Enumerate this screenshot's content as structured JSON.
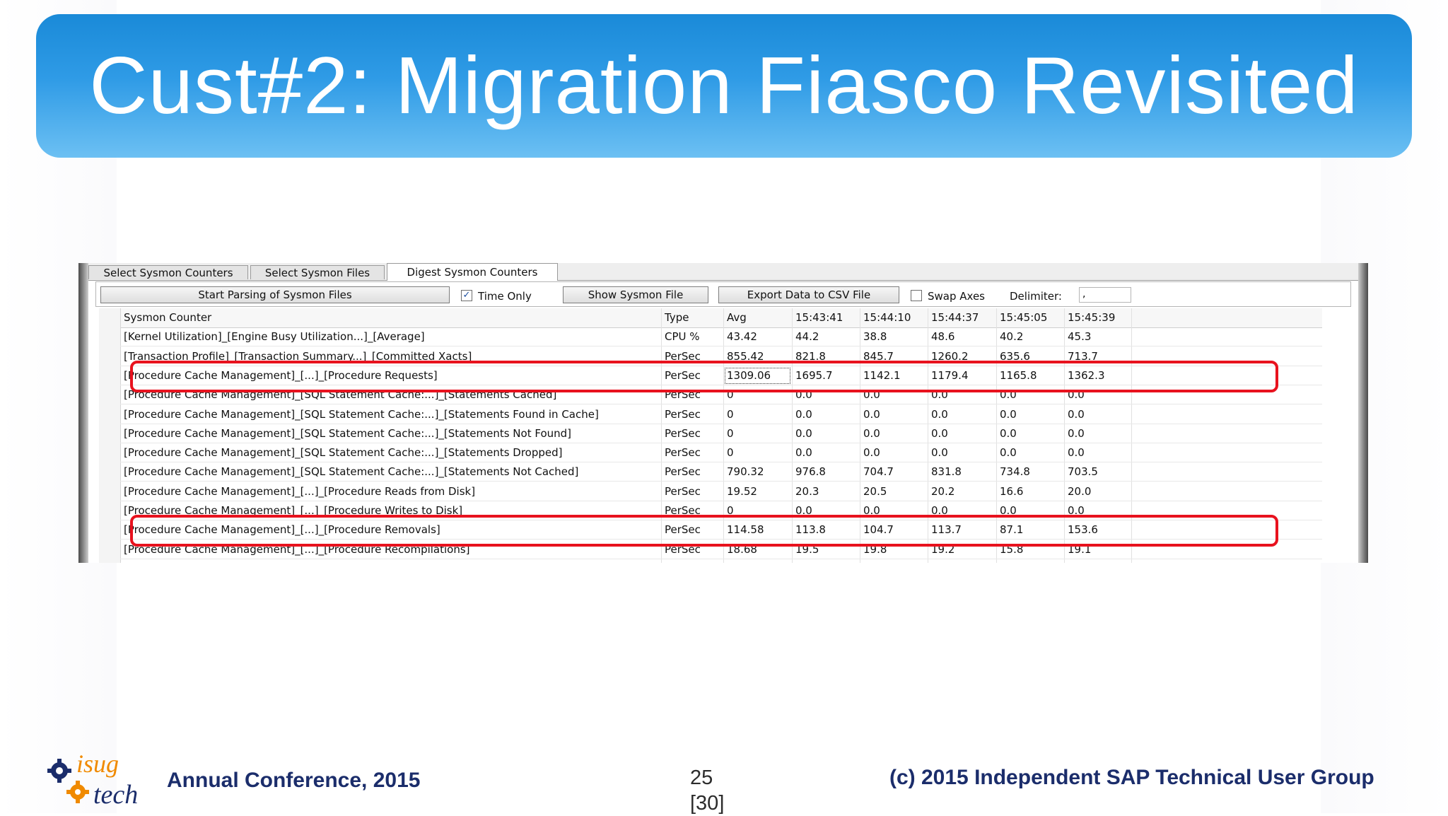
{
  "slide": {
    "title": "Cust#2: Migration Fiasco Revisited",
    "footer_left": "Annual Conference, 2015",
    "page_number": "25",
    "page_total": "[30]",
    "footer_right": "(c) 2015 Independent SAP Technical User Group",
    "logo_text_top": "isug",
    "logo_text_bottom": "tech"
  },
  "app": {
    "tabs": [
      "Select Sysmon Counters",
      "Select Sysmon Files",
      "Digest Sysmon Counters"
    ],
    "active_tab": "Digest Sysmon Counters",
    "toolbar": {
      "parse_button": "Start Parsing of Sysmon Files",
      "time_only_label": "Time Only",
      "time_only_checked": true,
      "show_file_button": "Show Sysmon File",
      "export_button": "Export Data to CSV File",
      "swap_axes_label": "Swap Axes",
      "swap_axes_checked": false,
      "delimiter_label": "Delimiter:",
      "delimiter_value": ","
    },
    "table": {
      "headers": [
        "Sysmon Counter",
        "Type",
        "Avg",
        "15:43:41",
        "15:44:10",
        "15:44:37",
        "15:45:05",
        "15:45:39"
      ],
      "rows": [
        [
          "[Kernel Utilization]_[Engine Busy Utilization...]_[Average]",
          "CPU %",
          "43.42",
          "44.2",
          "38.8",
          "48.6",
          "40.2",
          "45.3"
        ],
        [
          "[Transaction Profile]_[Transaction Summary...]_[Committed Xacts]",
          "PerSec",
          "855.42",
          "821.8",
          "845.7",
          "1260.2",
          "635.6",
          "713.7"
        ],
        [
          "[Procedure Cache Management]_[...]_[Procedure Requests]",
          "PerSec",
          "1309.06",
          "1695.7",
          "1142.1",
          "1179.4",
          "1165.8",
          "1362.3"
        ],
        [
          "[Procedure Cache Management]_[SQL Statement Cache:...]_[Statements Cached]",
          "PerSec",
          "0",
          "0.0",
          "0.0",
          "0.0",
          "0.0",
          "0.0"
        ],
        [
          "[Procedure Cache Management]_[SQL Statement Cache:...]_[Statements Found in Cache]",
          "PerSec",
          "0",
          "0.0",
          "0.0",
          "0.0",
          "0.0",
          "0.0"
        ],
        [
          "[Procedure Cache Management]_[SQL Statement Cache:...]_[Statements Not Found]",
          "PerSec",
          "0",
          "0.0",
          "0.0",
          "0.0",
          "0.0",
          "0.0"
        ],
        [
          "[Procedure Cache Management]_[SQL Statement Cache:...]_[Statements Dropped]",
          "PerSec",
          "0",
          "0.0",
          "0.0",
          "0.0",
          "0.0",
          "0.0"
        ],
        [
          "[Procedure Cache Management]_[SQL Statement Cache:...]_[Statements Not Cached]",
          "PerSec",
          "790.32",
          "976.8",
          "704.7",
          "831.8",
          "734.8",
          "703.5"
        ],
        [
          "[Procedure Cache Management]_[...]_[Procedure Reads from Disk]",
          "PerSec",
          "19.52",
          "20.3",
          "20.5",
          "20.2",
          "16.6",
          "20.0"
        ],
        [
          "[Procedure Cache Management]_[...]_[Procedure Writes to Disk]",
          "PerSec",
          "0",
          "0.0",
          "0.0",
          "0.0",
          "0.0",
          "0.0"
        ],
        [
          "[Procedure Cache Management]_[...]_[Procedure Removals]",
          "PerSec",
          "114.58",
          "113.8",
          "104.7",
          "113.7",
          "87.1",
          "153.6"
        ],
        [
          "[Procedure Cache Management]_[...]_[Procedure Recompilations]",
          "PerSec",
          "18.68",
          "19.5",
          "19.8",
          "19.2",
          "15.8",
          "19.1"
        ]
      ],
      "highlighted_rows": [
        2,
        10
      ],
      "focused_cell": {
        "row": 2,
        "col": 2
      }
    }
  },
  "colors": {
    "banner_top": "#1a8ad8",
    "banner_bottom": "#6cc0f3",
    "highlight": "#e8121e",
    "footer_text": "#1b2d6b"
  }
}
